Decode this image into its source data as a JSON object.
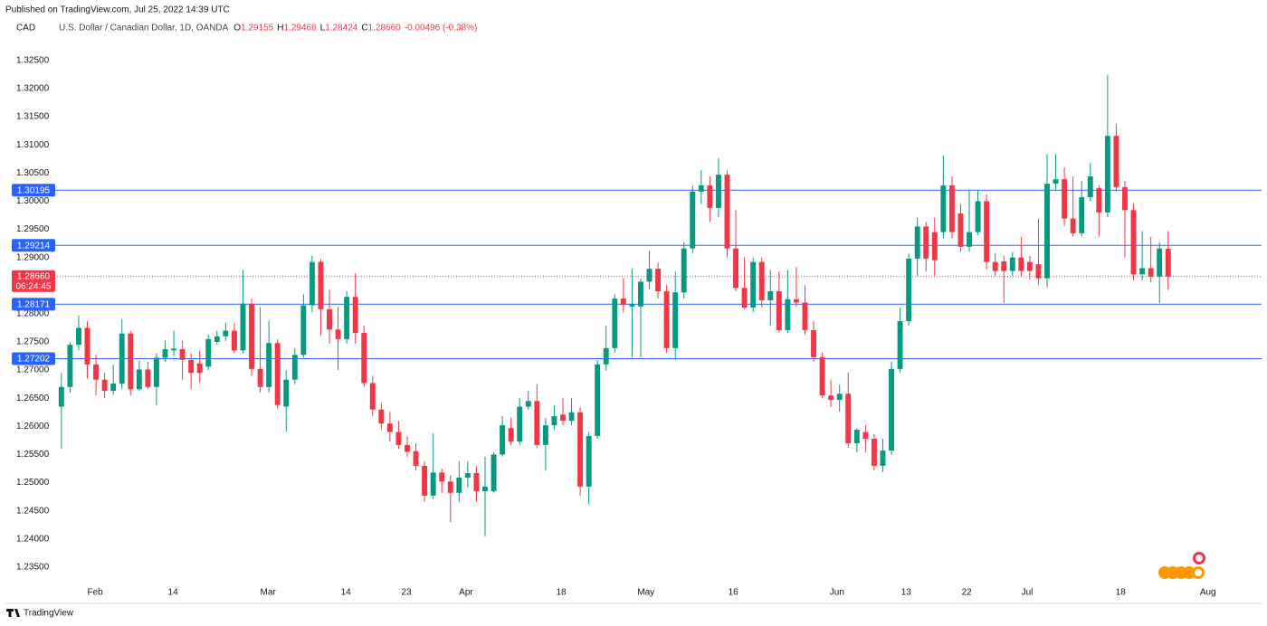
{
  "header": {
    "published": "Published on TradingView.com, Jul 25, 2022 14:39 UTC",
    "brand": "TradingView"
  },
  "chart_data": {
    "type": "candlestick",
    "currency": "CAD",
    "title": "U.S. Dollar / Canadian Dollar, 1D, OANDA",
    "ohlc_legend": [
      {
        "key": "O",
        "value": "1.29155"
      },
      {
        "key": "H",
        "value": "1.29468"
      },
      {
        "key": "L",
        "value": "1.28424"
      },
      {
        "key": "C",
        "value": "1.28660"
      }
    ],
    "change": "-0.00496 (-0.38%)",
    "up_color": "#089981",
    "down_color": "#f23645",
    "open": [
      1.2635,
      1.267,
      1.2745,
      1.2775,
      1.271,
      1.2683,
      1.2663,
      1.2676,
      1.2765,
      1.2666,
      1.2701,
      1.267,
      1.2722,
      1.2735,
      1.2737,
      1.2718,
      1.2712,
      1.2706,
      1.275,
      1.276,
      1.277,
      1.2735,
      1.2818,
      1.2702,
      1.267,
      1.2748,
      1.2635,
      1.2683,
      1.2727,
      1.2815,
      1.2892,
      1.2808,
      1.2772,
      1.2755,
      1.283,
      1.2766,
      1.2677,
      1.263,
      1.2605,
      1.259,
      1.2567,
      1.2556,
      1.253,
      1.2477,
      1.2518,
      1.2502,
      1.2482,
      1.2509,
      1.2517,
      1.2485,
      1.2485,
      1.255,
      1.2597,
      1.2573,
      1.2635,
      1.2645,
      1.2567,
      1.2602,
      1.2621,
      1.261,
      1.2625,
      1.2493,
      1.2583,
      1.271,
      1.2739,
      1.2827,
      1.2813,
      1.2813,
      1.2857,
      1.288,
      1.284,
      1.2739,
      1.2838,
      1.2916,
      1.3017,
      1.3028,
      1.2988,
      1.3047,
      1.2916,
      1.2846,
      1.2811,
      1.2892,
      1.2824,
      1.284,
      1.2771,
      1.2826,
      1.282,
      1.2771,
      1.2723,
      1.2655,
      1.2647,
      1.2658,
      1.257,
      1.259,
      1.2578,
      1.253,
      1.2557,
      1.2702,
      1.2787,
      1.2898,
      1.2955,
      1.2945,
      1.2945,
      1.3028,
      1.2978,
      1.2919,
      1.2945,
      1.3,
      1.2892,
      1.2893,
      1.2876,
      1.29,
      1.2892,
      1.2888,
      1.2863,
      1.3031,
      1.3039,
      1.2969,
      1.2943,
      1.3007,
      1.3023,
      1.298,
      1.3116,
      1.3025,
      1.2984,
      1.287,
      1.2881,
      1.2866,
      1.29155
    ],
    "high": [
      1.2695,
      1.275,
      1.2797,
      1.2787,
      1.2727,
      1.2695,
      1.271,
      1.279,
      1.277,
      1.2717,
      1.2715,
      1.273,
      1.2752,
      1.277,
      1.2752,
      1.273,
      1.2735,
      1.2763,
      1.277,
      1.2784,
      1.2784,
      1.2878,
      1.2827,
      1.2812,
      1.2788,
      1.2755,
      1.27,
      1.2739,
      1.2835,
      1.2903,
      1.2897,
      1.2843,
      1.2812,
      1.284,
      1.2872,
      1.2779,
      1.269,
      1.2642,
      1.2626,
      1.261,
      1.2583,
      1.257,
      1.2538,
      1.2588,
      1.2525,
      1.2513,
      1.2538,
      1.2538,
      1.253,
      1.2546,
      1.2554,
      1.2618,
      1.2615,
      1.265,
      1.2663,
      1.2675,
      1.2615,
      1.2637,
      1.265,
      1.265,
      1.2634,
      1.259,
      1.2718,
      1.2779,
      1.2835,
      1.2863,
      1.288,
      1.2863,
      1.2912,
      1.2891,
      1.2851,
      1.2875,
      1.2927,
      1.3028,
      1.3055,
      1.3044,
      1.3076,
      1.3055,
      1.2984,
      1.29,
      1.29,
      1.29,
      1.2878,
      1.2875,
      1.2878,
      1.2883,
      1.2851,
      1.2787,
      1.2731,
      1.2683,
      1.2674,
      1.2696,
      1.2597,
      1.2602,
      1.2586,
      1.2578,
      1.2715,
      1.2811,
      1.2907,
      1.2971,
      1.2963,
      1.2971,
      1.3081,
      1.3044,
      1.2995,
      1.302,
      1.302,
      1.3012,
      1.2907,
      1.2903,
      1.291,
      1.2937,
      1.2903,
      1.2969,
      1.3084,
      1.3084,
      1.306,
      1.3044,
      1.3036,
      1.3068,
      1.3028,
      1.3224,
      1.3137,
      1.3036,
      1.2996,
      1.2947,
      1.2937,
      1.2927,
      1.29468
    ],
    "low": [
      1.256,
      1.266,
      1.2735,
      1.2685,
      1.2655,
      1.265,
      1.2656,
      1.2666,
      1.2655,
      1.2663,
      1.2666,
      1.2637,
      1.2715,
      1.2725,
      1.2683,
      1.2666,
      1.2678,
      1.27,
      1.2745,
      1.2752,
      1.273,
      1.273,
      1.269,
      1.266,
      1.266,
      1.2632,
      1.2591,
      1.2675,
      1.2722,
      1.2803,
      1.2762,
      1.2747,
      1.27,
      1.2747,
      1.2747,
      1.267,
      1.2618,
      1.2594,
      1.2573,
      1.256,
      1.2546,
      1.2522,
      1.2466,
      1.2471,
      1.2482,
      1.243,
      1.2466,
      1.2491,
      1.2466,
      1.2405,
      1.2482,
      1.2546,
      1.2567,
      1.2567,
      1.263,
      1.2562,
      1.2522,
      1.2594,
      1.2602,
      1.2602,
      1.2477,
      1.2461,
      1.2578,
      1.2699,
      1.2731,
      1.2803,
      1.2723,
      1.2723,
      1.2844,
      1.2827,
      1.2731,
      1.2718,
      1.2827,
      1.2908,
      1.2995,
      1.2963,
      1.2972,
      1.29,
      1.284,
      1.2808,
      1.2803,
      1.2811,
      1.2779,
      1.2768,
      1.2766,
      1.2812,
      1.2763,
      1.2715,
      1.265,
      1.2634,
      1.2626,
      1.2562,
      1.2554,
      1.2554,
      1.2522,
      1.2519,
      1.255,
      1.2695,
      1.2779,
      1.2867,
      1.2875,
      1.2867,
      1.2934,
      1.2934,
      1.291,
      1.291,
      1.294,
      1.2879,
      1.2867,
      1.2819,
      1.2867,
      1.2867,
      1.2861,
      1.2851,
      1.2847,
      1.302,
      1.2956,
      1.2937,
      1.2937,
      1.3,
      1.2937,
      1.2972,
      1.3017,
      1.29,
      1.2859,
      1.2859,
      1.2856,
      1.2819,
      1.28424
    ],
    "close": [
      1.267,
      1.2745,
      1.2775,
      1.271,
      1.2683,
      1.2663,
      1.2676,
      1.2765,
      1.2666,
      1.2701,
      1.267,
      1.2722,
      1.2737,
      1.2738,
      1.2718,
      1.2695,
      1.2695,
      1.2755,
      1.276,
      1.277,
      1.2735,
      1.2818,
      1.2702,
      1.267,
      1.2748,
      1.2638,
      1.2683,
      1.2727,
      1.2815,
      1.2892,
      1.2808,
      1.2772,
      1.2755,
      1.283,
      1.2766,
      1.2677,
      1.263,
      1.2605,
      1.259,
      1.2567,
      1.2555,
      1.253,
      1.2477,
      1.2518,
      1.2502,
      1.2482,
      1.2509,
      1.2517,
      1.2485,
      1.2493,
      1.255,
      1.2602,
      1.2573,
      1.2635,
      1.2645,
      1.2567,
      1.2602,
      1.2618,
      1.261,
      1.2625,
      1.2493,
      1.2583,
      1.271,
      1.2739,
      1.2827,
      1.2816,
      1.2817,
      1.2857,
      1.288,
      1.284,
      1.2739,
      1.2838,
      1.2916,
      1.3017,
      1.3028,
      1.2988,
      1.3047,
      1.2916,
      1.2846,
      1.2811,
      1.2892,
      1.2824,
      1.284,
      1.2771,
      1.2826,
      1.282,
      1.2771,
      1.2723,
      1.2655,
      1.2647,
      1.2658,
      1.257,
      1.2594,
      1.2578,
      1.253,
      1.2557,
      1.2702,
      1.2787,
      1.2898,
      1.2955,
      1.2898,
      1.2895,
      1.3028,
      1.2945,
      1.2919,
      1.2945,
      1.3,
      1.2892,
      1.2876,
      1.2876,
      1.29,
      1.2876,
      1.2876,
      1.2863,
      1.3031,
      1.3039,
      1.2969,
      1.2943,
      1.3007,
      1.3044,
      1.298,
      1.3116,
      1.3025,
      1.2984,
      1.287,
      1.2881,
      1.2866,
      1.2916,
      1.2866
    ],
    "levels": [
      1.30195,
      1.29214,
      1.28171,
      1.27202
    ],
    "level_color": "#2962ff",
    "last_price": {
      "value": 1.2866,
      "label": "1.28660"
    },
    "countdown": "06:24:45",
    "xlim": [
      -7.1,
      134.2
    ],
    "xticks": [
      {
        "value": 3.9,
        "label": "Feb"
      },
      {
        "value": 12.9,
        "label": "14"
      },
      {
        "value": 23.9,
        "label": "Mar"
      },
      {
        "value": 32.9,
        "label": "14"
      },
      {
        "value": 39.9,
        "label": "23"
      },
      {
        "value": 46.8,
        "label": "Apr"
      },
      {
        "value": 57.8,
        "label": "18"
      },
      {
        "value": 67.6,
        "label": "May"
      },
      {
        "value": 77.7,
        "label": "16"
      },
      {
        "value": 89.7,
        "label": "Jun"
      },
      {
        "value": 97.7,
        "label": "13"
      },
      {
        "value": 104.7,
        "label": "22"
      },
      {
        "value": 111.7,
        "label": "Jul"
      },
      {
        "value": 122.5,
        "label": "18"
      },
      {
        "value": 132.6,
        "label": "Aug"
      }
    ],
    "ylim": [
      1.2321,
      1.3285
    ],
    "yticks": [
      {
        "value": 1.325,
        "label": "1.32500"
      },
      {
        "value": 1.32,
        "label": "1.32000"
      },
      {
        "value": 1.315,
        "label": "1.31500"
      },
      {
        "value": 1.31,
        "label": "1.31000"
      },
      {
        "value": 1.305,
        "label": "1.30500"
      },
      {
        "value": 1.3,
        "label": "1.30000"
      },
      {
        "value": 1.295,
        "label": "1.29500"
      },
      {
        "value": 1.29,
        "label": "1.29000"
      },
      {
        "value": 1.285,
        "label": "1.28500"
      },
      {
        "value": 1.28,
        "label": "1.28000"
      },
      {
        "value": 1.275,
        "label": "1.27500"
      },
      {
        "value": 1.27,
        "label": "1.27000"
      },
      {
        "value": 1.265,
        "label": "1.26500"
      },
      {
        "value": 1.26,
        "label": "1.26000"
      },
      {
        "value": 1.255,
        "label": "1.25500"
      },
      {
        "value": 1.25,
        "label": "1.25000"
      },
      {
        "value": 1.245,
        "label": "1.24500"
      },
      {
        "value": 1.24,
        "label": "1.24000"
      },
      {
        "value": 1.235,
        "label": "1.23500"
      }
    ]
  }
}
